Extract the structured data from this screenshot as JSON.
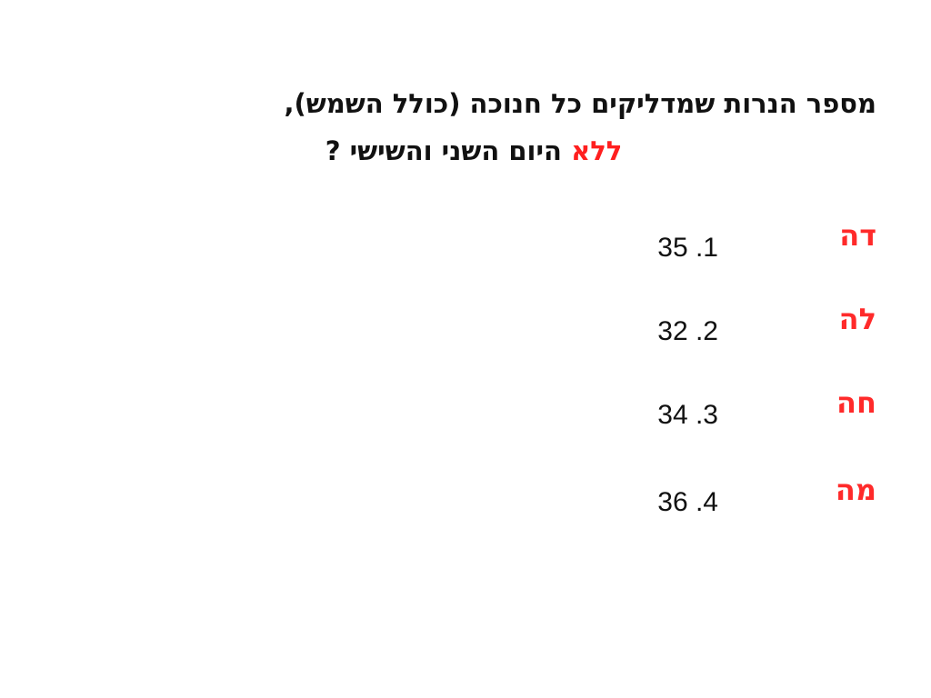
{
  "question": {
    "line1": "מספר הנרות שמדליקים כל חנוכה (כולל השמש),",
    "line2_emphasis": "ללא",
    "line2_rest": " היום השני והשישי ?"
  },
  "answers": [
    {
      "tag": "דה",
      "number": "35 .1"
    },
    {
      "tag": "לה",
      "number": "32 .2"
    },
    {
      "tag": "חה",
      "number": "34 .3"
    },
    {
      "tag": "מה",
      "number": "36 .4"
    }
  ],
  "colors": {
    "text": "#111111",
    "emphasis": "#ff1f1f",
    "background": "#ffffff"
  }
}
